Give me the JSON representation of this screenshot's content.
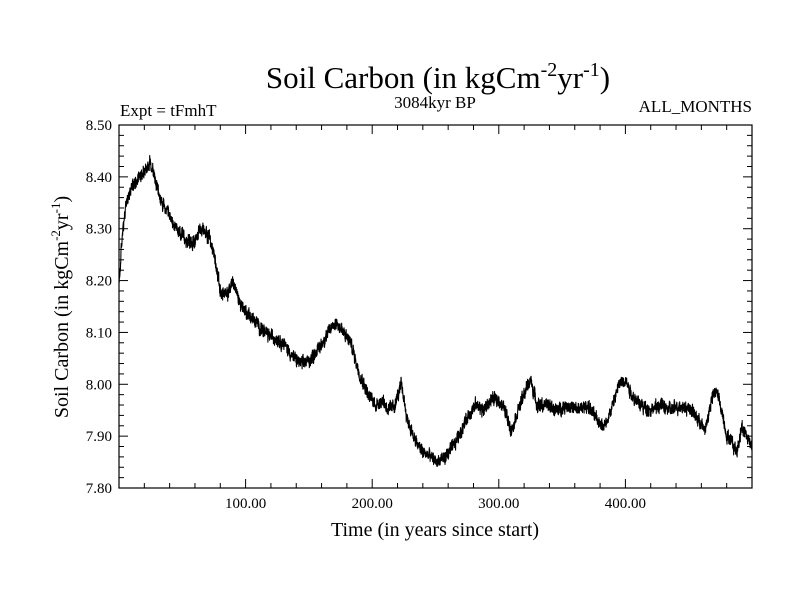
{
  "chart_data": {
    "type": "line",
    "title_main": "Soil Carbon (in kgCm",
    "title_sup1": "-2",
    "title_mid": "yr",
    "title_sup2": "-1",
    "title_end": ")",
    "experiment_label": "Expt = tFmhT",
    "period_label": "3084kyr BP",
    "months_label": "ALL_MONTHS",
    "xlabel": "Time (in years since start)",
    "ylabel_main": "Soil Carbon (in kgCm",
    "ylabel_sup1": "-2",
    "ylabel_mid": "yr",
    "ylabel_sup2": "-1",
    "ylabel_end": ")",
    "xlim": [
      0,
      500
    ],
    "ylim": [
      7.8,
      8.5
    ],
    "x_ticks": [
      100,
      200,
      300,
      400
    ],
    "x_tick_labels": [
      "100.00",
      "200.00",
      "300.00",
      "400.00"
    ],
    "y_ticks": [
      7.8,
      7.9,
      8.0,
      8.1,
      8.2,
      8.3,
      8.4,
      8.5
    ],
    "y_tick_labels": [
      "7.80",
      "7.90",
      "8.00",
      "8.10",
      "8.20",
      "8.30",
      "8.40",
      "8.50"
    ],
    "line_color": "#000000",
    "series": [
      {
        "name": "Soil Carbon",
        "x": [
          0,
          3,
          6,
          10,
          15,
          20,
          25,
          28,
          32,
          38,
          45,
          52,
          58,
          62,
          67,
          72,
          76,
          80,
          85,
          90,
          95,
          100,
          108,
          115,
          122,
          130,
          138,
          145,
          152,
          158,
          163,
          168,
          172,
          177,
          183,
          190,
          197,
          203,
          208,
          213,
          218,
          223,
          228,
          234,
          240,
          246,
          252,
          258,
          264,
          270,
          276,
          282,
          288,
          294,
          300,
          305,
          310,
          315,
          320,
          325,
          330,
          338,
          346,
          354,
          362,
          370,
          378,
          384,
          390,
          395,
          400,
          405,
          412,
          420,
          428,
          436,
          444,
          452,
          458,
          463,
          468,
          472,
          476,
          480,
          484,
          488,
          492,
          496,
          500
        ],
        "y": [
          8.19,
          8.3,
          8.35,
          8.38,
          8.4,
          8.41,
          8.43,
          8.4,
          8.36,
          8.33,
          8.3,
          8.28,
          8.27,
          8.29,
          8.3,
          8.28,
          8.24,
          8.18,
          8.17,
          8.2,
          8.16,
          8.14,
          8.12,
          8.1,
          8.09,
          8.08,
          8.05,
          8.04,
          8.05,
          8.07,
          8.09,
          8.11,
          8.12,
          8.1,
          8.08,
          8.02,
          7.98,
          7.96,
          7.97,
          7.95,
          7.96,
          8.0,
          7.93,
          7.89,
          7.87,
          7.86,
          7.85,
          7.86,
          7.88,
          7.91,
          7.94,
          7.96,
          7.95,
          7.97,
          7.97,
          7.95,
          7.91,
          7.95,
          7.98,
          8.01,
          7.96,
          7.96,
          7.95,
          7.96,
          7.95,
          7.96,
          7.93,
          7.92,
          7.96,
          8.0,
          8.01,
          7.98,
          7.96,
          7.95,
          7.96,
          7.95,
          7.96,
          7.95,
          7.93,
          7.91,
          7.97,
          7.99,
          7.95,
          7.9,
          7.89,
          7.87,
          7.92,
          7.9,
          7.88
        ]
      }
    ]
  }
}
